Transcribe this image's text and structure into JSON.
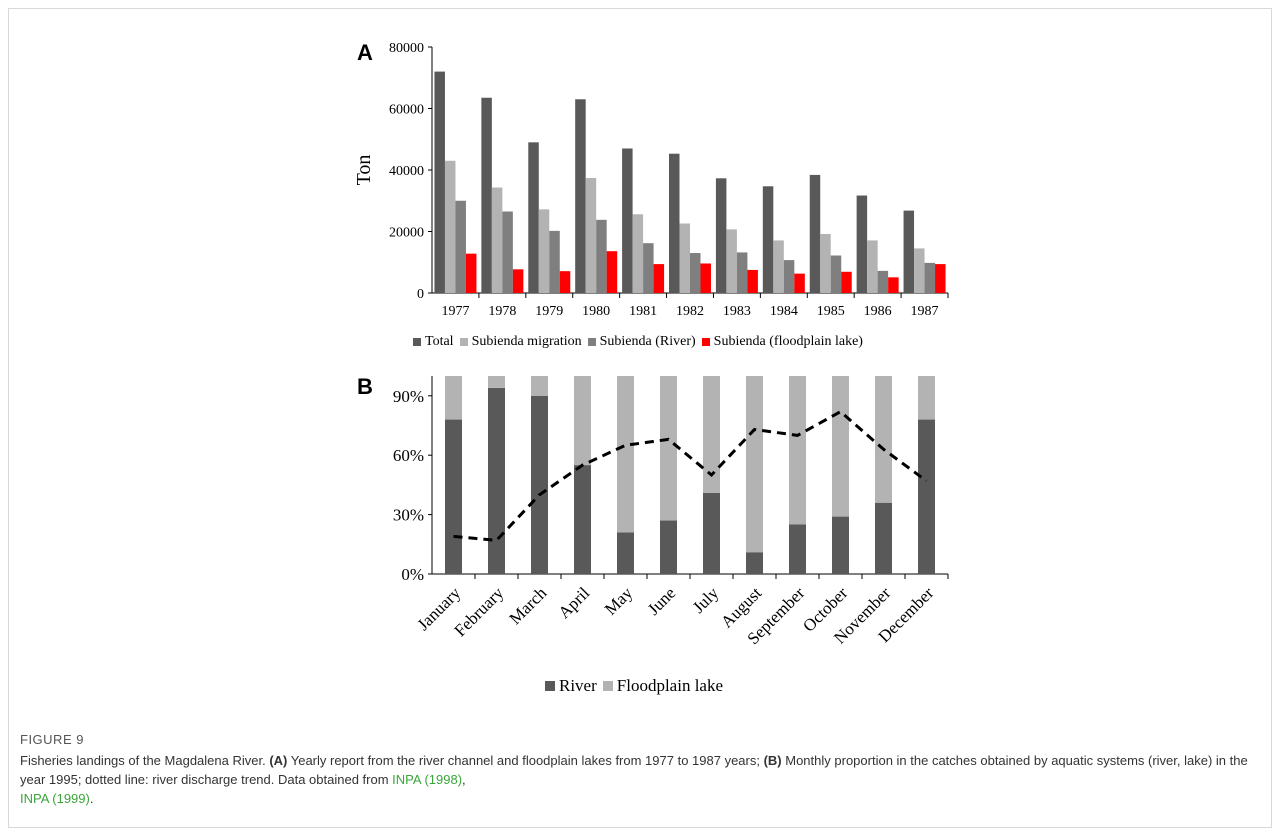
{
  "chart_data": [
    {
      "panel": "A",
      "type": "bar",
      "ylabel": "Ton",
      "ylim": [
        0,
        80000
      ],
      "yticks": [
        "0",
        "20000",
        "40000",
        "60000",
        "80000"
      ],
      "categories": [
        "1977",
        "1978",
        "1979",
        "1980",
        "1981",
        "1982",
        "1983",
        "1984",
        "1985",
        "1986",
        "1987"
      ],
      "series": [
        {
          "name": "Total",
          "color": "#595959",
          "values": [
            72000,
            63500,
            49000,
            63000,
            47000,
            45300,
            37300,
            34700,
            38400,
            31700,
            26800
          ]
        },
        {
          "name": "Subienda migration",
          "color": "#b3b3b3",
          "values": [
            43000,
            34300,
            27200,
            37400,
            25600,
            22600,
            20700,
            17100,
            19200,
            17100,
            14500
          ]
        },
        {
          "name": "Subienda (River)",
          "color": "#7f7f7f",
          "values": [
            30000,
            26500,
            20200,
            23800,
            16200,
            13000,
            13200,
            10700,
            12200,
            7200,
            9800
          ]
        },
        {
          "name": "Subienda (floodplain lake)",
          "color": "#ff0000",
          "values": [
            12800,
            7700,
            7100,
            13600,
            9400,
            9600,
            7500,
            6300,
            6900,
            5100,
            9400
          ]
        }
      ],
      "legend_position": "bottom"
    },
    {
      "panel": "B",
      "type": "bar",
      "stacked": true,
      "ylim": [
        0,
        100
      ],
      "yticks": [
        "0%",
        "30%",
        "60%",
        "90%"
      ],
      "categories": [
        "January",
        "February",
        "March",
        "April",
        "May",
        "June",
        "July",
        "August",
        "September",
        "October",
        "November",
        "December"
      ],
      "series": [
        {
          "name": "River",
          "color": "#595959",
          "values": [
            78,
            94,
            90,
            55,
            21,
            27,
            41,
            11,
            25,
            29,
            36,
            78
          ]
        },
        {
          "name": "Floodplain lake",
          "color": "#b3b3b3",
          "values": [
            22,
            6,
            10,
            45,
            79,
            73,
            59,
            89,
            75,
            71,
            64,
            22
          ]
        }
      ],
      "line": {
        "style": "dashed",
        "color": "#000000",
        "values": [
          19,
          17,
          40,
          55,
          65,
          68,
          50,
          73,
          70,
          82,
          63,
          47
        ]
      },
      "legend_position": "bottom"
    }
  ],
  "panels": {
    "a_letter": "A",
    "b_letter": "B"
  },
  "caption": {
    "figure_label": "FIGURE 9",
    "text_1": "Fisheries landings of the Magdalena River. ",
    "bold_a": "(A)",
    "text_2": " Yearly report from the river channel and floodplain lakes from 1977 to 1987 years; ",
    "bold_b": "(B)",
    "text_3": " Monthly proportion in the catches obtained by aquatic systems (river, lake) in the year 1995; dotted line: river discharge trend. Data obtained from ",
    "ref_1": "INPA (1998)",
    "text_4": ",",
    "ref_2": "INPA (1999)",
    "text_5": "."
  }
}
